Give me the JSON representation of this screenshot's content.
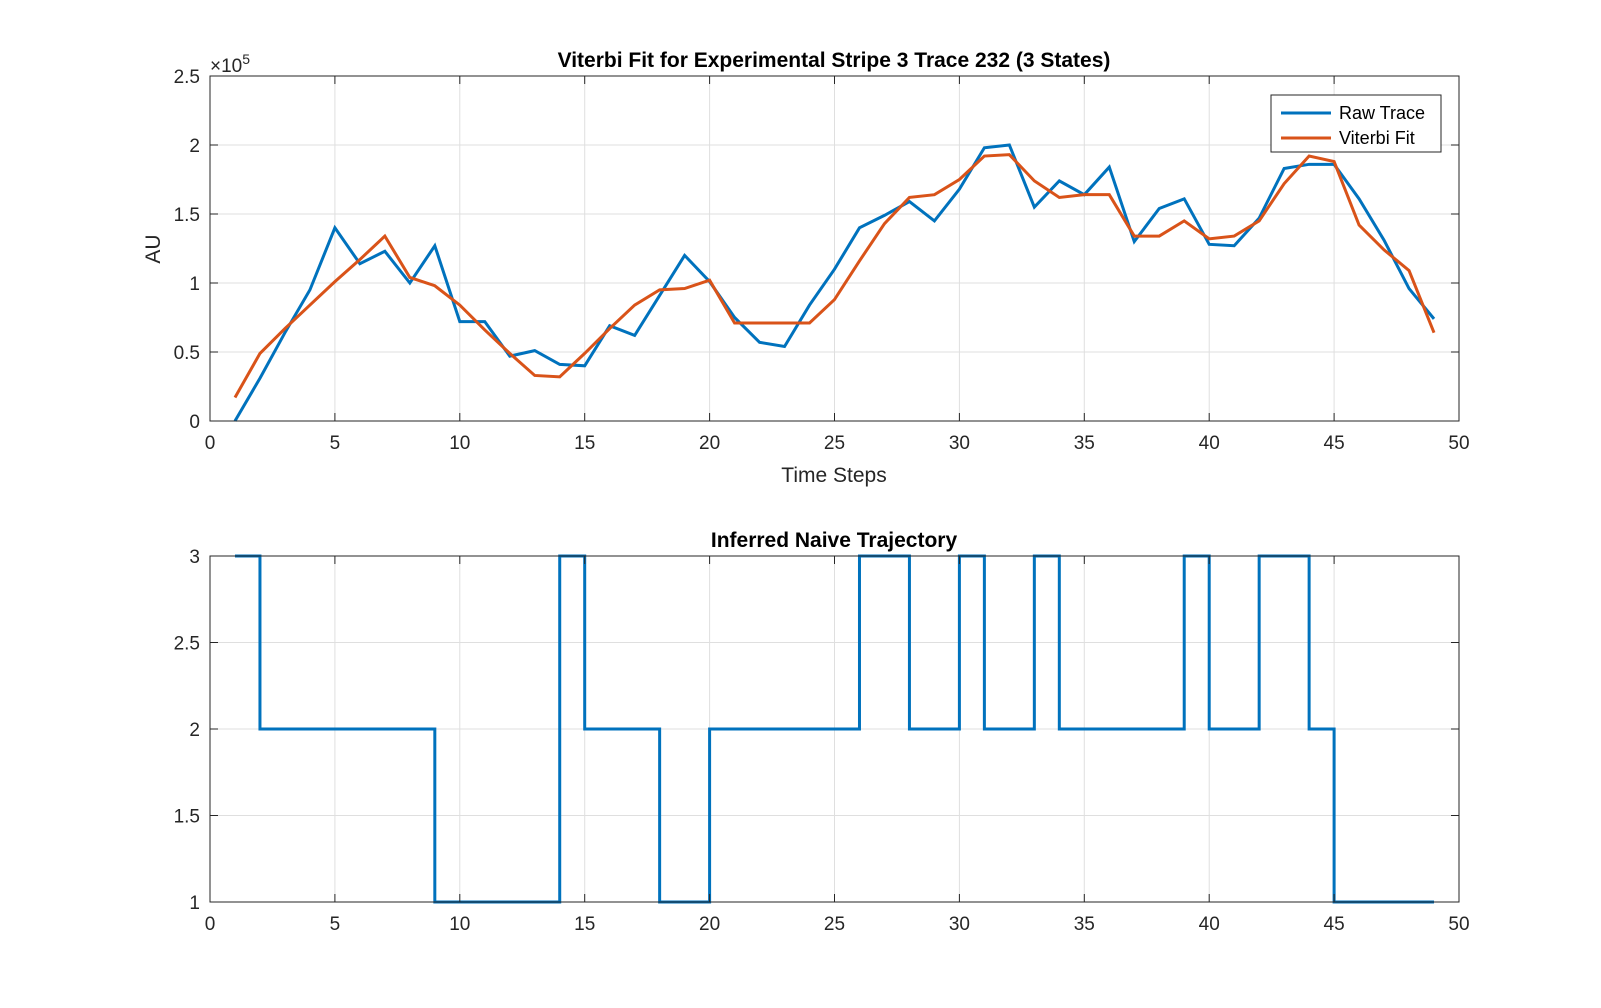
{
  "colors": {
    "raw": "#0072bd",
    "fit": "#d95319",
    "axis": "#262626",
    "grid": "#dfdfdf"
  },
  "chart_data": [
    {
      "type": "line",
      "title": "Viterbi Fit for Experimental Stripe 3 Trace 232 (3 States)",
      "xlabel": "Time Steps",
      "ylabel": "AU",
      "y_exponent_label": "×10",
      "y_exponent_power": "5",
      "xlim": [
        0,
        50
      ],
      "ylim": [
        0,
        250000
      ],
      "xticks": [
        0,
        5,
        10,
        15,
        20,
        25,
        30,
        35,
        40,
        45,
        50
      ],
      "yticks": [
        0,
        50000,
        100000,
        150000,
        200000,
        250000
      ],
      "ytick_labels": [
        "0",
        "0.5",
        "1",
        "1.5",
        "2",
        "2.5"
      ],
      "grid": true,
      "legend_position": "top-right",
      "x": [
        1,
        2,
        3,
        4,
        5,
        6,
        7,
        8,
        9,
        10,
        11,
        12,
        13,
        14,
        15,
        16,
        17,
        18,
        19,
        20,
        21,
        22,
        23,
        24,
        25,
        26,
        27,
        28,
        29,
        30,
        31,
        32,
        33,
        34,
        35,
        36,
        37,
        38,
        39,
        40,
        41,
        42,
        43,
        44,
        45,
        46,
        47,
        48,
        49
      ],
      "series": [
        {
          "name": "Raw Trace",
          "values": [
            0,
            31000,
            64000,
            95000,
            140000,
            114000,
            123000,
            100000,
            127000,
            72000,
            72000,
            47000,
            51000,
            41000,
            40000,
            69000,
            62000,
            91000,
            120000,
            101000,
            75000,
            57000,
            54000,
            84000,
            110000,
            140000,
            149000,
            159000,
            145000,
            168000,
            198000,
            200000,
            155000,
            174000,
            164000,
            184000,
            130000,
            154000,
            161000,
            128000,
            127000,
            147000,
            183000,
            186000,
            186000,
            161000,
            131000,
            96000,
            74000
          ]
        },
        {
          "name": "Viterbi Fit",
          "values": [
            17000,
            49000,
            67000,
            84000,
            101000,
            117000,
            134000,
            104000,
            98000,
            84000,
            66000,
            49000,
            33000,
            32000,
            49000,
            67000,
            84000,
            95000,
            96000,
            102000,
            71000,
            71000,
            71000,
            71000,
            88000,
            116000,
            143000,
            162000,
            164000,
            175000,
            192000,
            193000,
            174000,
            162000,
            164000,
            164000,
            134000,
            134000,
            145000,
            132000,
            134000,
            145000,
            172000,
            192000,
            188000,
            142000,
            124000,
            109000,
            64000
          ]
        }
      ]
    },
    {
      "type": "line",
      "title": "Inferred Naive Trajectory",
      "xlim": [
        0,
        50
      ],
      "ylim": [
        1,
        3
      ],
      "xticks": [
        0,
        5,
        10,
        15,
        20,
        25,
        30,
        35,
        40,
        45,
        50
      ],
      "yticks": [
        1,
        1.5,
        2,
        2.5,
        3
      ],
      "ytick_labels": [
        "1",
        "1.5",
        "2",
        "2.5",
        "3"
      ],
      "grid": true,
      "step": true,
      "x": [
        1,
        2,
        3,
        4,
        5,
        6,
        7,
        8,
        9,
        10,
        11,
        12,
        13,
        14,
        15,
        16,
        17,
        18,
        19,
        20,
        21,
        22,
        23,
        24,
        25,
        26,
        27,
        28,
        29,
        30,
        31,
        32,
        33,
        34,
        35,
        36,
        37,
        38,
        39,
        40,
        41,
        42,
        43,
        44,
        45,
        46,
        47,
        48,
        49
      ],
      "series": [
        {
          "values": [
            3,
            2,
            2,
            2,
            2,
            2,
            2,
            2,
            1,
            1,
            1,
            1,
            1,
            3,
            2,
            2,
            2,
            1,
            1,
            2,
            2,
            2,
            2,
            2,
            2,
            3,
            3,
            2,
            2,
            3,
            2,
            2,
            3,
            2,
            2,
            2,
            2,
            2,
            3,
            2,
            2,
            3,
            3,
            2,
            1,
            1,
            1,
            1,
            1
          ]
        }
      ]
    }
  ]
}
